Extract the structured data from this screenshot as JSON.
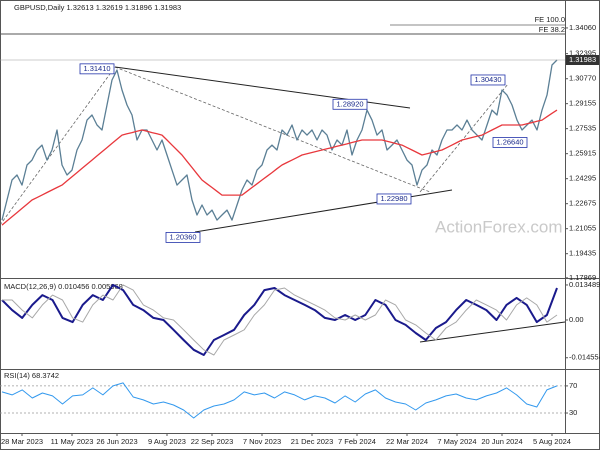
{
  "chart_data": [
    {
      "type": "line",
      "title": "GBPUSD,Daily  1.32613 1.32619 1.31896 1.31983",
      "watermark": "ActionForex.com",
      "categories": [
        null,
        null,
        null,
        null,
        "28 Mar 2023",
        null,
        null,
        null,
        null,
        null,
        null,
        null,
        null,
        null,
        "11 May 2023",
        null,
        null,
        null,
        null,
        null,
        null,
        null,
        null,
        "26 Jun 2023",
        null,
        null,
        null,
        null,
        null,
        null,
        null,
        null,
        null,
        "9 Aug 2023",
        null,
        null,
        null,
        null,
        null,
        null,
        null,
        null,
        "22 Sep 2023",
        null,
        null,
        null,
        null,
        null,
        null,
        null,
        null,
        null,
        "7 Nov 2023",
        null,
        null,
        null,
        null,
        null,
        null,
        null,
        null,
        null,
        "21 Dec 2023",
        null,
        null,
        null,
        null,
        null,
        null,
        null,
        null,
        "7 Feb 2024",
        null,
        null,
        null,
        null,
        null,
        null,
        null,
        null,
        null,
        "22 Mar 2024",
        null,
        null,
        null,
        null,
        null,
        null,
        null,
        null,
        null,
        "7 May 2024",
        null,
        null,
        null,
        null,
        null,
        null,
        null,
        null,
        "20 Jun 2024",
        null,
        null,
        null,
        null,
        null,
        null,
        null,
        null,
        null,
        "5 Aug 2024",
        null
      ],
      "series": [
        {
          "color": "#5b7f95",
          "values": [
            1.2161,
            1.2291,
            1.2421,
            1.2453,
            1.2388,
            1.2518,
            1.255,
            1.2615,
            1.2647,
            1.255,
            1.2615,
            1.2745,
            1.2518,
            1.2453,
            1.2485,
            1.2615,
            1.268,
            1.2809,
            1.2842,
            1.2777,
            1.2745,
            1.2907,
            1.3069,
            1.3133,
            1.3004,
            1.2907,
            1.2842,
            1.268,
            1.2745,
            1.2745,
            1.268,
            1.2615,
            1.268,
            1.2583,
            1.2485,
            1.2388,
            1.2421,
            1.2453,
            1.2291,
            1.2194,
            1.2259,
            1.2194,
            1.2226,
            1.2161,
            1.2194,
            1.2226,
            1.2161,
            1.2259,
            1.2356,
            1.2421,
            1.2388,
            1.2485,
            1.2518,
            1.2615,
            1.2647,
            1.2615,
            1.2745,
            1.2712,
            1.2777,
            1.268,
            1.2745,
            1.2712,
            1.2745,
            1.268,
            1.2745,
            1.2712,
            1.2615,
            1.268,
            1.2647,
            1.2745,
            1.2583,
            1.268,
            1.2745,
            1.2874,
            1.2809,
            1.2712,
            1.2745,
            1.2615,
            1.2647,
            1.268,
            1.2615,
            1.255,
            1.2518,
            1.2388,
            1.2485,
            1.2518,
            1.2615,
            1.2583,
            1.268,
            1.2745,
            1.2745,
            1.2777,
            1.2745,
            1.2809,
            1.2745,
            1.2712,
            1.268,
            1.2777,
            1.2874,
            1.2842,
            1.3004,
            1.2971,
            1.2907,
            1.2809,
            1.2745,
            1.2777,
            1.2809,
            1.2745,
            1.2874,
            1.2971,
            1.3166,
            1.3198
          ]
        },
        {
          "color": "#e8383d",
          "values": [
            1.2129,
            1.2156,
            1.2183,
            1.221,
            1.2237,
            1.2264,
            1.2291,
            1.2307,
            1.2323,
            1.234,
            1.2356,
            1.2372,
            1.2388,
            1.2415,
            1.2442,
            1.2469,
            1.2496,
            1.2523,
            1.255,
            1.2577,
            1.2604,
            1.2631,
            1.2658,
            1.2685,
            1.2712,
            1.272,
            1.2728,
            1.2737,
            1.2745,
            1.2737,
            1.2728,
            1.272,
            1.2712,
            1.268,
            1.2647,
            1.2615,
            1.2583,
            1.2542,
            1.2502,
            1.2461,
            1.2421,
            1.2396,
            1.2372,
            1.2348,
            1.2323,
            1.2323,
            1.2323,
            1.2323,
            1.2323,
            1.2348,
            1.2372,
            1.2396,
            1.2421,
            1.2445,
            1.2469,
            1.2494,
            1.2518,
            1.2534,
            1.255,
            1.2566,
            1.2583,
            1.2591,
            1.2599,
            1.2607,
            1.2615,
            1.2623,
            1.2631,
            1.2639,
            1.2647,
            1.2655,
            1.2664,
            1.2672,
            1.268,
            1.268,
            1.268,
            1.268,
            1.268,
            1.2672,
            1.2664,
            1.2655,
            1.2647,
            1.2631,
            1.2615,
            1.2599,
            1.2583,
            1.2591,
            1.2599,
            1.2607,
            1.2615,
            1.2631,
            1.2647,
            1.2664,
            1.268,
            1.2688,
            1.2696,
            1.2704,
            1.2712,
            1.2728,
            1.2745,
            1.2761,
            1.2777,
            1.2777,
            1.2777,
            1.2777,
            1.2777,
            1.2785,
            1.2793,
            1.2801,
            1.2809,
            1.2831,
            1.2853,
            1.2874
          ]
        }
      ],
      "ylim": [
        1.1786,
        1.3587
      ],
      "yticks": [
        {
          "value": 1.3406,
          "label": "1.34060"
        },
        1.32395,
        {
          "value": 1.3077,
          "label": "1.30770"
        },
        1.29155,
        1.27535,
        1.25915,
        1.24295,
        1.22675,
        1.21055,
        1.19435,
        1.17869
      ],
      "last_value": {
        "value": 1.31983,
        "label": "1.31983"
      },
      "annotations": [
        {
          "value": 1.3141,
          "label": "1.31410"
        },
        {
          "value": 1.2892,
          "label": "1.28920"
        },
        {
          "value": 1.3043,
          "label": "1.30430"
        },
        {
          "value": 1.2664,
          "label": "1.26640"
        },
        {
          "value": 1.2298,
          "label": "1.22980"
        },
        {
          "value": 1.2036,
          "label": "1.20360"
        }
      ],
      "fib_levels": [
        "FE 100.0",
        "FE 38.2"
      ]
    },
    {
      "type": "line",
      "title": "MACD(12,26,9) 0.010456 0.005968",
      "series": [
        {
          "color": "#1a1a8c",
          "width": 2,
          "values": [
            0.0077,
            0.0038,
            0.0008,
            0.0058,
            0.0096,
            0.0077,
            0.0008,
            -0.0008,
            0.0058,
            0.0096,
            0.0077,
            0.0135,
            0.0115,
            0.0058,
            0.0038,
            0.0008,
            0,
            -0.0038,
            -0.0077,
            -0.0115,
            -0.0135,
            -0.0077,
            -0.0058,
            -0.0038,
            0.0019,
            0.0058,
            0.0115,
            0.0123,
            0.0096,
            0.0077,
            0.0058,
            0.0038,
            0.0008,
            0,
            0.0019,
            0,
            0.0019,
            0.0077,
            0.0058,
            0,
            -0.0019,
            -0.005,
            -0.0077,
            -0.0031,
            -0.0008,
            0.0038,
            0.0077,
            0.0058,
            0.0038,
            0,
            0.0058,
            0.0085,
            0.0058,
            -0.0008,
            0.0019,
            0.0123
          ]
        },
        {
          "color": "#a8a8a8",
          "width": 1,
          "values": [
            0.0077,
            0.0077,
            0.0038,
            0.0008,
            0.0058,
            0.0096,
            0.0077,
            0.0008,
            -0.0008,
            0.0058,
            0.0096,
            0.0077,
            0.0135,
            0.0115,
            0.0058,
            0.0038,
            0.0008,
            0,
            -0.0038,
            -0.0077,
            -0.0115,
            -0.0135,
            -0.0077,
            -0.0058,
            -0.0038,
            0.0019,
            0.0058,
            0.0115,
            0.0123,
            0.0096,
            0.0077,
            0.0058,
            0.0038,
            0.0008,
            0,
            0.0019,
            0,
            0.0019,
            0.0077,
            0.0058,
            0,
            -0.0019,
            -0.005,
            -0.0077,
            -0.0031,
            -0.0008,
            0.0038,
            0.0077,
            0.0058,
            0.0038,
            0,
            0.0058,
            0.0085,
            0.0058,
            -0.0008,
            0.0019
          ]
        }
      ],
      "ylim": [
        -0.0185,
        0.0154
      ],
      "yticks": [
        0.013489,
        {
          "value": 0,
          "label": "0.00"
        },
        -0.014554
      ]
    },
    {
      "type": "line",
      "title": "RSI(14) 68.3742",
      "series": [
        {
          "color": "#3399ee",
          "width": 1,
          "values": [
            61.1,
            56.7,
            64.1,
            52.2,
            59.6,
            55.2,
            43.3,
            55.2,
            56.7,
            67,
            56.7,
            70,
            74.4,
            53.7,
            49.3,
            43.3,
            46.3,
            41.9,
            34.4,
            22.6,
            34.4,
            40.4,
            43.3,
            49.3,
            61.1,
            56.7,
            59.6,
            52.2,
            61.1,
            56.7,
            49.3,
            55.2,
            52.2,
            44.8,
            55.2,
            46.3,
            58.1,
            64.1,
            52.2,
            46.3,
            43.3,
            34.4,
            44.8,
            49.3,
            55.2,
            58.1,
            52.2,
            49.3,
            55.2,
            59.6,
            67,
            56.7,
            43.3,
            38.9,
            64.1,
            70
          ]
        }
      ],
      "ylim": [
        2,
        92
      ],
      "yticks": [
        70,
        30
      ],
      "grid": true
    }
  ]
}
